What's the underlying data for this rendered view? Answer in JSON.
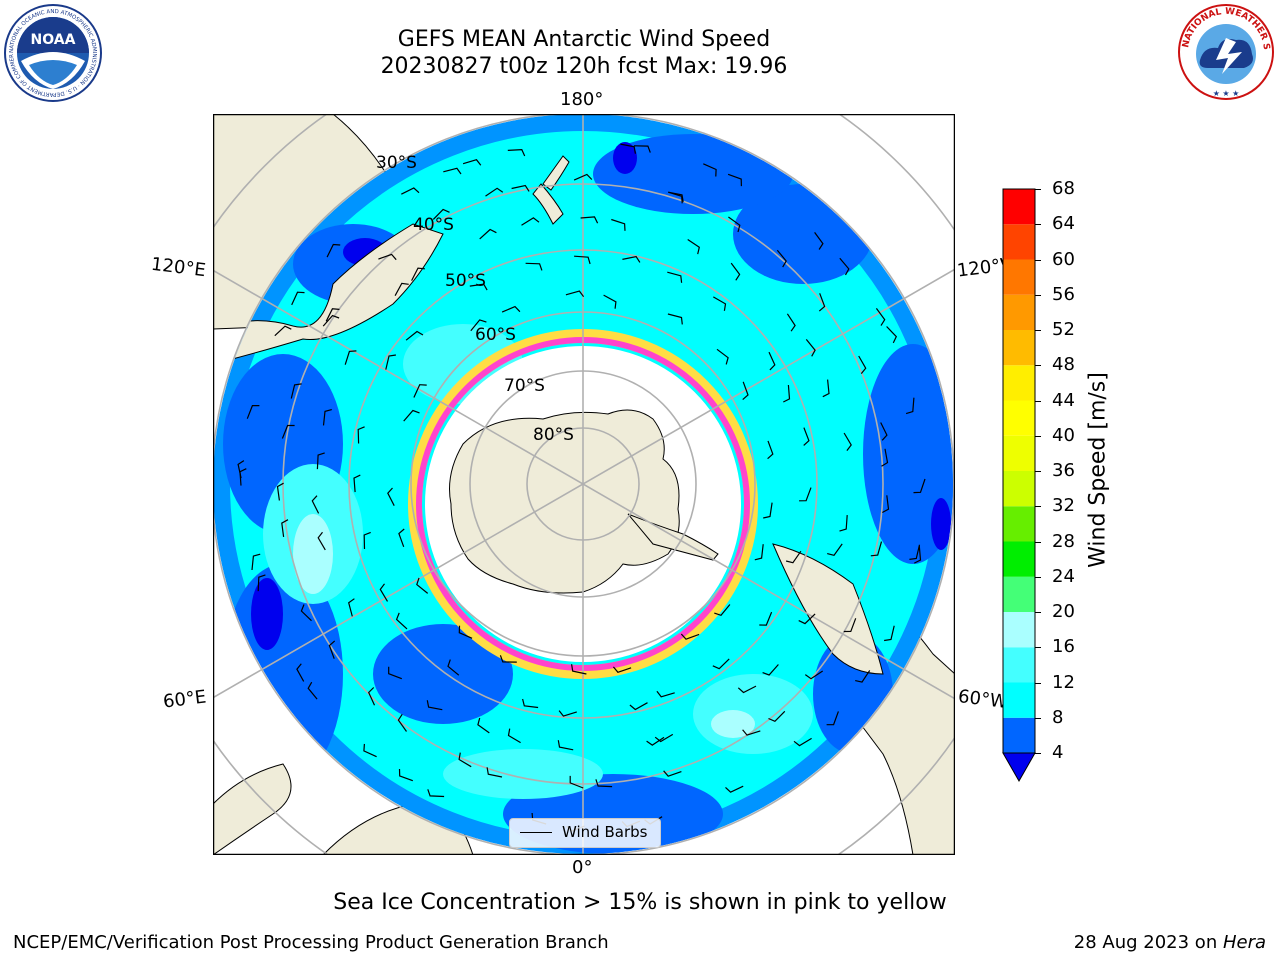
{
  "title": {
    "line1": "GEFS MEAN Antarctic Wind Speed",
    "line2": "20230827 t00z 120h fcst   Max: 19.96"
  },
  "logos": {
    "left": {
      "text": "NOAA",
      "ring_text": "NATIONAL OCEANIC AND ATMOSPHERIC ADMINISTRATION · U.S. DEPARTMENT OF COMMERCE",
      "icon": "noaa-logo"
    },
    "right": {
      "text": "NATIONAL WEATHER SERVICE",
      "icon": "nws-logo"
    }
  },
  "map": {
    "projection": "south polar stereographic",
    "lon_labels": {
      "top": "180°",
      "bottom": "0°",
      "upper_left": "120°E",
      "upper_right": "120°W",
      "lower_left": "60°E",
      "lower_right": "60°W"
    },
    "lat_labels": [
      "30°S",
      "40°S",
      "50°S",
      "60°S",
      "70°S",
      "80°S"
    ],
    "colors": {
      "land": "#efecd9",
      "ice_edge_pink": "#ff44cc",
      "ice_edge_yellow": "#ffdd44",
      "grid": "#b0b0b0"
    },
    "legend": {
      "label": "Wind Barbs"
    }
  },
  "colorbar": {
    "label": "Wind Speed [m/s]",
    "ticks": [
      "4",
      "8",
      "12",
      "16",
      "20",
      "24",
      "28",
      "32",
      "36",
      "40",
      "44",
      "48",
      "52",
      "56",
      "60",
      "64",
      "68"
    ],
    "bins": [
      {
        "from": 4,
        "to": 8,
        "color": "#0066ff"
      },
      {
        "from": 8,
        "to": 12,
        "color": "#00ffff"
      },
      {
        "from": 12,
        "to": 16,
        "color": "#44ffff"
      },
      {
        "from": 16,
        "to": 20,
        "color": "#aaffff"
      },
      {
        "from": 20,
        "to": 24,
        "color": "#44ff77"
      },
      {
        "from": 24,
        "to": 28,
        "color": "#00ee00"
      },
      {
        "from": 28,
        "to": 32,
        "color": "#66ee00"
      },
      {
        "from": 32,
        "to": 36,
        "color": "#ccff00"
      },
      {
        "from": 36,
        "to": 40,
        "color": "#eeff00"
      },
      {
        "from": 40,
        "to": 44,
        "color": "#ffff00"
      },
      {
        "from": 44,
        "to": 48,
        "color": "#ffee00"
      },
      {
        "from": 48,
        "to": 52,
        "color": "#ffbb00"
      },
      {
        "from": 52,
        "to": 56,
        "color": "#ff9900"
      },
      {
        "from": 56,
        "to": 60,
        "color": "#ff7700"
      },
      {
        "from": 60,
        "to": 64,
        "color": "#ff4400"
      },
      {
        "from": 64,
        "to": 68,
        "color": "#ff0000"
      }
    ],
    "under_color": "#0000ee"
  },
  "caption": "Sea Ice Concentration > 15% is shown in pink to yellow",
  "footer": {
    "left": "NCEP/EMC/Verification Post Processing Product Generation Branch",
    "right_prefix": "28 Aug 2023 on ",
    "right_machine": "Hera"
  }
}
